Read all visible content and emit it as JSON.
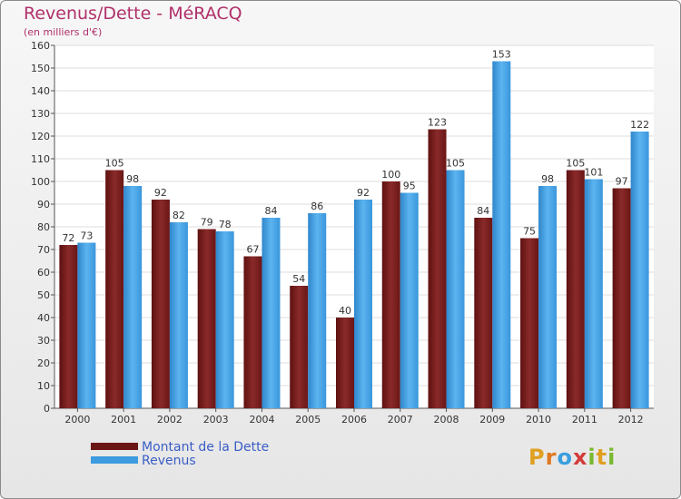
{
  "chart_data": {
    "type": "bar",
    "title": "Revenus/Dette - MéRACQ",
    "subtitle": "(en milliers d'€)",
    "categories": [
      "2000",
      "2001",
      "2002",
      "2003",
      "2004",
      "2005",
      "2006",
      "2007",
      "2008",
      "2009",
      "2010",
      "2011",
      "2012"
    ],
    "series": [
      {
        "name": "Montant de la Dette",
        "color": "#7a1e1e",
        "values": [
          72,
          105,
          92,
          79,
          67,
          54,
          40,
          100,
          123,
          84,
          75,
          105,
          97
        ]
      },
      {
        "name": "Revenus",
        "color": "#3d9be0",
        "values": [
          73,
          98,
          82,
          78,
          84,
          86,
          92,
          95,
          105,
          153,
          98,
          101,
          122
        ]
      }
    ],
    "ylim": [
      0,
      160
    ],
    "yticks": [
      0,
      10,
      20,
      30,
      40,
      50,
      60,
      70,
      80,
      90,
      100,
      110,
      120,
      130,
      140,
      150,
      160
    ],
    "grid": true,
    "legend": "bottom-left"
  },
  "logo": {
    "letters": [
      "P",
      "r",
      "o",
      "x",
      "i",
      "t",
      "i"
    ],
    "colors": [
      "#e0a020",
      "#e07820",
      "#3a9ee0",
      "#d43a3a",
      "#7ab830",
      "#e0a020",
      "#7ab830"
    ]
  }
}
